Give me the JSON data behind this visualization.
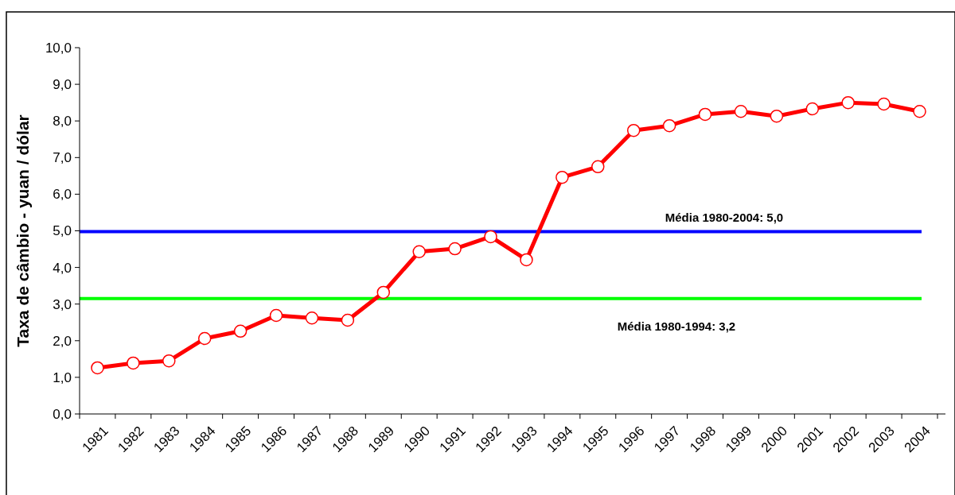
{
  "chart_data": {
    "type": "line",
    "ylabel": "Taxa de câmbio  -  yuan / dólar",
    "categories": [
      "1981",
      "1982",
      "1983",
      "1984",
      "1985",
      "1986",
      "1987",
      "1988",
      "1989",
      "1990",
      "1991",
      "1992",
      "1993",
      "1994",
      "1995",
      "1996",
      "1997",
      "1998",
      "1999",
      "2000",
      "2001",
      "2002",
      "2003",
      "2004"
    ],
    "series": [
      {
        "color": "#ff0000",
        "values": [
          1.26,
          1.39,
          1.45,
          2.06,
          2.26,
          2.69,
          2.62,
          2.56,
          3.32,
          4.43,
          4.51,
          4.84,
          4.21,
          6.46,
          6.75,
          7.74,
          7.87,
          8.18,
          8.26,
          8.13,
          8.33,
          8.5,
          8.46,
          8.26
        ]
      }
    ],
    "ylim": [
      0,
      10
    ],
    "yticks": [
      {
        "value": 0,
        "label": "0,0"
      },
      {
        "value": 1,
        "label": "1,0"
      },
      {
        "value": 2,
        "label": "2,0"
      },
      {
        "value": 3,
        "label": "3,0"
      },
      {
        "value": 4,
        "label": "4,0"
      },
      {
        "value": 5,
        "label": "5,0"
      },
      {
        "value": 6,
        "label": "6,0"
      },
      {
        "value": 7,
        "label": "7,0"
      },
      {
        "value": 8,
        "label": "8,0"
      },
      {
        "value": 9,
        "label": "9,0"
      },
      {
        "value": 10,
        "label": "10,0"
      }
    ],
    "ref_lines": [
      {
        "axis": "y",
        "value": 4.98,
        "label": "Média 1980-2004: 5,0",
        "color": "#0000ff"
      },
      {
        "axis": "y",
        "value": 3.15,
        "label": "Média 1980-1994: 3,2",
        "color": "#00ff00"
      }
    ],
    "marker": "circle"
  }
}
